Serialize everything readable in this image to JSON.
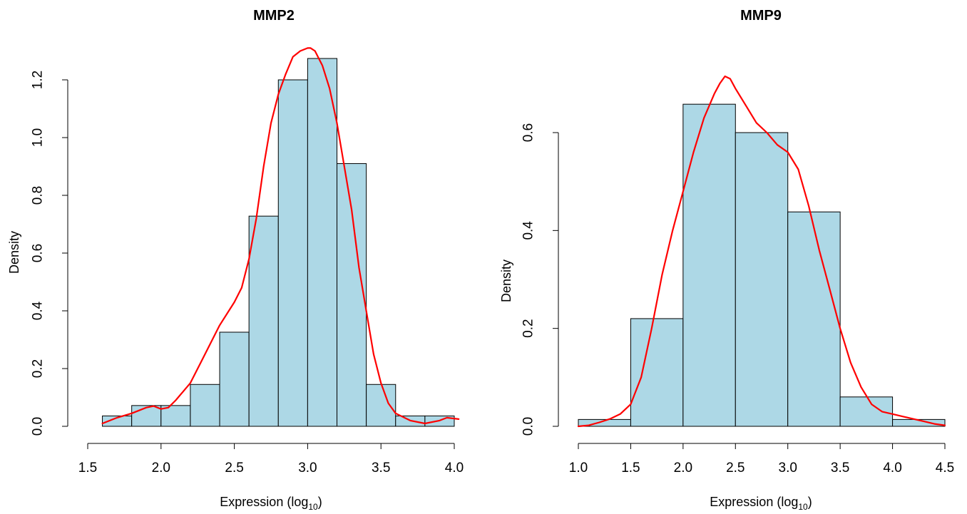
{
  "chart_data": [
    {
      "type": "bar",
      "title": "MMP2",
      "xlabel": "Expression (log",
      "xlabel_sub": "10",
      "xlabel_close": ")",
      "ylabel": "Density",
      "xlim": [
        1.5,
        4.0
      ],
      "ylim": [
        0,
        1.2
      ],
      "xticks": [
        1.5,
        2.0,
        2.5,
        3.0,
        3.5,
        4.0
      ],
      "xtick_labels": [
        "1.5",
        "2.0",
        "2.5",
        "3.0",
        "3.5",
        "4.0"
      ],
      "yticks": [
        0.0,
        0.2,
        0.4,
        0.6,
        0.8,
        1.0,
        1.2
      ],
      "ytick_labels": [
        "0.0",
        "0.2",
        "0.4",
        "0.6",
        "0.8",
        "1.0",
        "1.2"
      ],
      "bin_edges": [
        1.6,
        1.8,
        2.0,
        2.2,
        2.4,
        2.6,
        2.8,
        3.0,
        3.2,
        3.4,
        3.6,
        3.8,
        4.0
      ],
      "values": [
        0.036,
        0.072,
        0.072,
        0.145,
        0.326,
        0.728,
        1.2,
        1.274,
        0.91,
        0.145,
        0.036,
        0.036
      ],
      "bar_color": "#add8e6",
      "density_color": "#ff0000",
      "density_x": [
        1.6,
        1.7,
        1.8,
        1.9,
        1.95,
        2.0,
        2.05,
        2.1,
        2.2,
        2.3,
        2.4,
        2.5,
        2.55,
        2.6,
        2.65,
        2.7,
        2.75,
        2.8,
        2.85,
        2.9,
        2.95,
        3.0,
        3.02,
        3.05,
        3.1,
        3.15,
        3.2,
        3.25,
        3.3,
        3.35,
        3.4,
        3.45,
        3.5,
        3.55,
        3.6,
        3.7,
        3.8,
        3.9,
        3.95,
        4.03
      ],
      "density_y": [
        0.01,
        0.03,
        0.045,
        0.065,
        0.07,
        0.06,
        0.065,
        0.09,
        0.15,
        0.25,
        0.35,
        0.43,
        0.48,
        0.58,
        0.72,
        0.9,
        1.05,
        1.15,
        1.22,
        1.28,
        1.3,
        1.31,
        1.31,
        1.3,
        1.25,
        1.17,
        1.05,
        0.9,
        0.75,
        0.55,
        0.4,
        0.25,
        0.15,
        0.08,
        0.045,
        0.02,
        0.01,
        0.02,
        0.03,
        0.025
      ]
    },
    {
      "type": "bar",
      "title": "MMP9",
      "xlabel": "Expression (log",
      "xlabel_sub": "10",
      "xlabel_close": ")",
      "ylabel": "Density",
      "xlim": [
        1.0,
        4.5
      ],
      "ylim": [
        0,
        0.6
      ],
      "xticks": [
        1.0,
        1.5,
        2.0,
        2.5,
        3.0,
        3.5,
        4.0,
        4.5
      ],
      "xtick_labels": [
        "1.0",
        "1.5",
        "2.0",
        "2.5",
        "3.0",
        "3.5",
        "4.0",
        "4.5"
      ],
      "yticks": [
        0.0,
        0.2,
        0.4,
        0.6
      ],
      "ytick_labels": [
        "0.0",
        "0.2",
        "0.4",
        "0.6"
      ],
      "bin_edges": [
        1.0,
        1.5,
        2.0,
        2.5,
        3.0,
        3.5,
        4.0,
        4.5
      ],
      "values": [
        0.014,
        0.22,
        0.658,
        0.6,
        0.438,
        0.06,
        0.014
      ],
      "bar_color": "#add8e6",
      "density_color": "#ff0000",
      "density_x": [
        1.0,
        1.1,
        1.2,
        1.3,
        1.4,
        1.5,
        1.6,
        1.7,
        1.8,
        1.9,
        2.0,
        2.1,
        2.2,
        2.3,
        2.35,
        2.4,
        2.45,
        2.5,
        2.6,
        2.7,
        2.8,
        2.9,
        3.0,
        3.1,
        3.2,
        3.3,
        3.4,
        3.5,
        3.6,
        3.7,
        3.8,
        3.9,
        4.0,
        4.1,
        4.2,
        4.3,
        4.4,
        4.5
      ],
      "density_y": [
        0.0,
        0.002,
        0.008,
        0.015,
        0.025,
        0.045,
        0.1,
        0.2,
        0.31,
        0.4,
        0.48,
        0.56,
        0.63,
        0.68,
        0.7,
        0.715,
        0.71,
        0.69,
        0.655,
        0.62,
        0.6,
        0.575,
        0.56,
        0.525,
        0.45,
        0.36,
        0.28,
        0.2,
        0.13,
        0.08,
        0.045,
        0.03,
        0.025,
        0.02,
        0.015,
        0.01,
        0.005,
        0.002
      ]
    }
  ]
}
